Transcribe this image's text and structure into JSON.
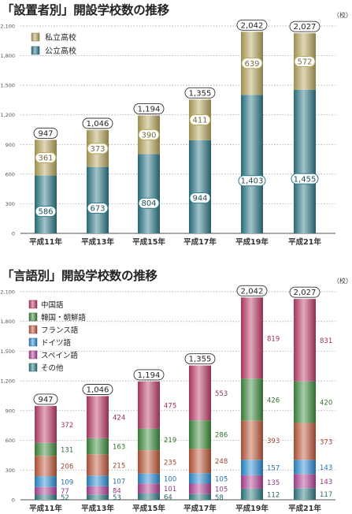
{
  "chart_data": [
    {
      "type": "bar",
      "title": "「設置者別」開設学校数の推移",
      "unit": "（校）",
      "categories": [
        "平成11年",
        "平成13年",
        "平成15年",
        "平成17年",
        "平成19年",
        "平成21年"
      ],
      "ylim": [
        0,
        2100
      ],
      "yticks": [
        "0",
        "300",
        "600",
        "900",
        "1,200",
        "1,500",
        "1,800",
        "2,100"
      ],
      "totals": [
        "947",
        "1,046",
        "1,194",
        "1,355",
        "2,042",
        "2,027"
      ],
      "legend_position": "top-left",
      "series": [
        {
          "name": "公立高校",
          "color": "#2e7b8c",
          "values": [
            586,
            673,
            804,
            944,
            1403,
            1455
          ],
          "labels": [
            "586",
            "673",
            "804",
            "944",
            "1,403",
            "1,455"
          ]
        },
        {
          "name": "私立高校",
          "color": "#b9a85e",
          "values": [
            361,
            373,
            390,
            411,
            639,
            572
          ],
          "labels": [
            "361",
            "373",
            "390",
            "411",
            "639",
            "572"
          ]
        }
      ]
    },
    {
      "type": "bar",
      "title": "「言語別」開設学校数の推移",
      "unit": "（校）",
      "categories": [
        "平成11年",
        "平成13年",
        "平成15年",
        "平成17年",
        "平成19年",
        "平成21年"
      ],
      "ylim": [
        0,
        2100
      ],
      "yticks": [
        "0",
        "300",
        "600",
        "900",
        "1,200",
        "1,500",
        "1,800",
        "2,100"
      ],
      "totals": [
        "947",
        "1,046",
        "1,194",
        "1,355",
        "2,042",
        "2,027"
      ],
      "legend_position": "top-left",
      "series": [
        {
          "name": "その他",
          "color": "#2f7f86",
          "values": [
            52,
            53,
            64,
            58,
            112,
            117
          ]
        },
        {
          "name": "スペイン語",
          "color": "#b5449a",
          "values": [
            77,
            84,
            101,
            105,
            135,
            143
          ]
        },
        {
          "name": "ドイツ語",
          "color": "#2b8fd6",
          "values": [
            109,
            107,
            100,
            105,
            157,
            143
          ]
        },
        {
          "name": "フランス語",
          "color": "#c25a3c",
          "values": [
            206,
            215,
            235,
            248,
            393,
            373
          ]
        },
        {
          "name": "韓国・朝鮮語",
          "color": "#3f8e3f",
          "values": [
            131,
            163,
            219,
            286,
            426,
            420
          ]
        },
        {
          "name": "中国語",
          "color": "#c03e6c",
          "values": [
            372,
            424,
            475,
            553,
            819,
            831
          ]
        }
      ]
    }
  ]
}
